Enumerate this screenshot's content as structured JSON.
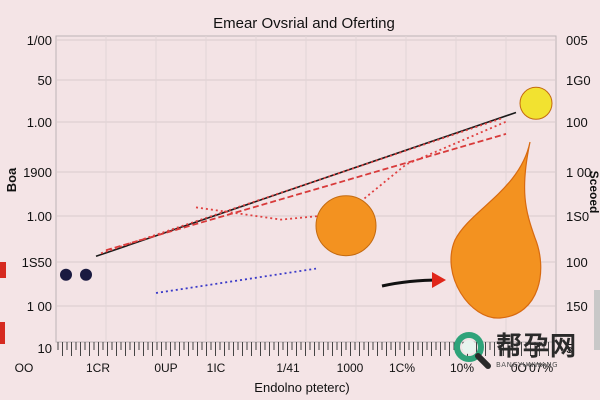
{
  "chart_data": {
    "type": "line",
    "title": "Emear Ovsrial and Oferting",
    "xlabel": "Endolno pteterc)",
    "ylabel_left": "Boa",
    "ylabel_right": "Sceoed",
    "y_ticks_left": [
      "1/00",
      "50",
      "1.00",
      "1900",
      "1.00",
      "1S50",
      "1 00",
      "10"
    ],
    "y_ticks_right": [
      "005",
      "1G0",
      "100",
      "1 00",
      "1S0",
      "100",
      "150",
      "5"
    ],
    "x_ticks": [
      "OO",
      "1CR",
      "0UP",
      "1IC",
      "1/41",
      "1000",
      "1C%",
      "10%",
      "0O'07%"
    ],
    "x_range": [
      0,
      100
    ],
    "y_range": [
      0,
      100
    ],
    "series": [
      {
        "name": "black line",
        "color": "#1a1a1a",
        "style": "solid",
        "points": [
          [
            8,
            28
          ],
          [
            92,
            75
          ]
        ]
      },
      {
        "name": "red outer",
        "color": "#d83a3a",
        "style": "dashed",
        "points": [
          [
            10,
            30
          ],
          [
            90,
            68
          ]
        ]
      },
      {
        "name": "red upper",
        "color": "#e04040",
        "style": "dotted",
        "points": [
          [
            9,
            29
          ],
          [
            89,
            73
          ]
        ]
      },
      {
        "name": "red curve",
        "color": "#e04040",
        "style": "dotted",
        "points": [
          [
            28,
            44
          ],
          [
            45,
            40
          ],
          [
            58,
            42
          ],
          [
            70,
            58
          ],
          [
            90,
            72
          ]
        ]
      },
      {
        "name": "blue dotted",
        "color": "#3a3ac8",
        "style": "dotted",
        "points": [
          [
            20,
            16
          ],
          [
            52,
            24
          ]
        ]
      }
    ],
    "markers": [
      {
        "name": "yellow circle",
        "x": 96,
        "y": 78,
        "color": "#f2e230"
      },
      {
        "name": "orange circle",
        "x": 58,
        "y": 38,
        "color": "#f39220"
      },
      {
        "name": "navy point A",
        "x": 2,
        "y": 22,
        "color": "#1a1a40"
      },
      {
        "name": "navy point B",
        "x": 6,
        "y": 22,
        "color": "#1a1a40"
      }
    ],
    "shape": {
      "name": "orange blob",
      "color": "#f39220"
    },
    "arrow_color": "#e0261a"
  },
  "watermark": {
    "title": "帮孕网",
    "subtitle": "BANGYUNWANG"
  }
}
